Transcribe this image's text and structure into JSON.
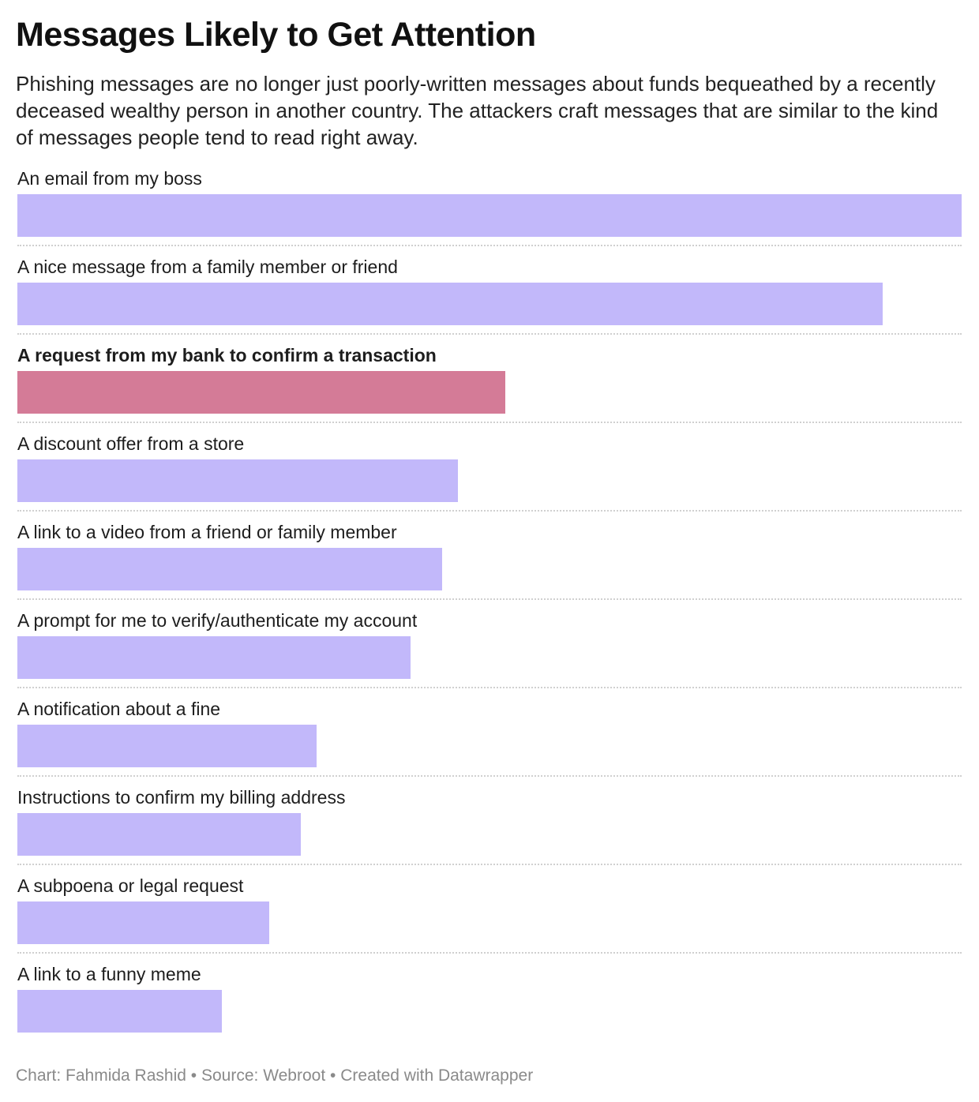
{
  "title": "Messages Likely to Get Attention",
  "subtitle": "Phishing messages are no longer just poorly-written messages about funds bequeathed by a recently deceased wealthy person in another country. The attackers craft messages that are similar to the kind of messages people tend to read right away.",
  "footer": {
    "chart_credit": "Chart: Fahmida Rashid",
    "source": "Source: Webroot",
    "tool": "Created with Datawrapper",
    "separator": "•"
  },
  "colors": {
    "bar": "#c2b8fa",
    "highlight": "#d47b97"
  },
  "chart_data": {
    "type": "bar",
    "orientation": "horizontal",
    "categories": [
      "An email from my boss",
      "A nice message from a family member or friend",
      "A request from my bank to confirm a transaction",
      "A discount offer from a store",
      "A link to a video from a friend or family member",
      "A prompt for me to verify/authenticate my account",
      "A notification about a fine",
      "Instructions to confirm my billing address",
      "A subpoena or legal request",
      "A link to a funny meme"
    ],
    "values": [
      60,
      55,
      31,
      28,
      27,
      25,
      19,
      18,
      16,
      13
    ],
    "highlight_index": 2,
    "xlim": [
      0,
      60
    ],
    "grid": false,
    "legend": "none"
  }
}
